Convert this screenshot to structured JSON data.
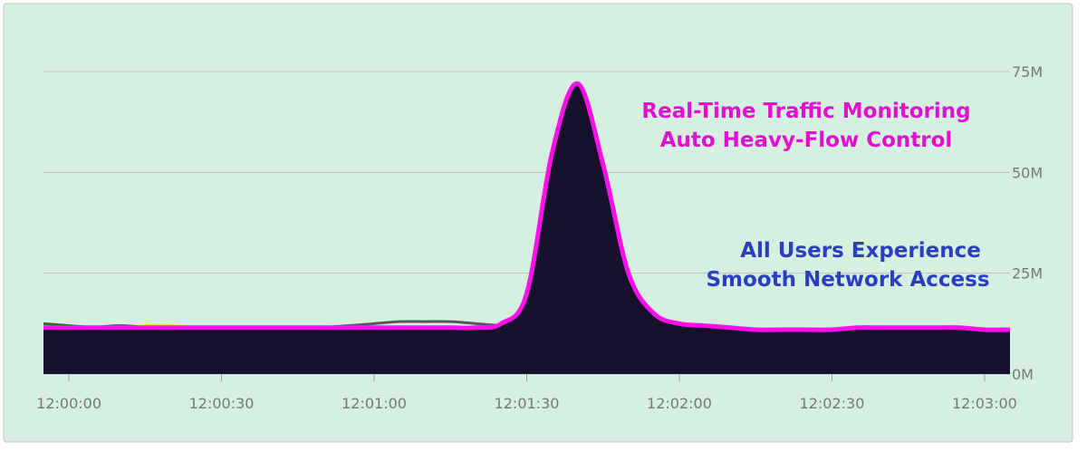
{
  "chart_data": {
    "type": "line",
    "x": [
      "11:59:55",
      "12:00:00",
      "12:00:05",
      "12:00:10",
      "12:00:15",
      "12:00:20",
      "12:00:25",
      "12:00:30",
      "12:00:35",
      "12:00:40",
      "12:00:45",
      "12:00:50",
      "12:00:55",
      "12:01:00",
      "12:01:05",
      "12:01:10",
      "12:01:15",
      "12:01:20",
      "12:01:25",
      "12:01:30",
      "12:01:35",
      "12:01:40",
      "12:01:45",
      "12:01:50",
      "12:01:55",
      "12:02:00",
      "12:02:05",
      "12:02:10",
      "12:02:15",
      "12:02:20",
      "12:02:25",
      "12:02:30",
      "12:02:35",
      "12:02:40",
      "12:02:45",
      "12:02:50",
      "12:02:55",
      "12:03:00",
      "12:03:05"
    ],
    "xticks": [
      "12:00:00",
      "12:00:30",
      "12:01:00",
      "12:01:30",
      "12:02:00",
      "12:02:30",
      "12:03:00"
    ],
    "ylim": [
      0,
      80
    ],
    "yticks": [
      {
        "value": 0,
        "label": "0M"
      },
      {
        "value": 25,
        "label": "25M"
      },
      {
        "value": 50,
        "label": "50M"
      },
      {
        "value": 75,
        "label": "75M"
      }
    ],
    "grid": true,
    "annotations": [
      "Real-Time Traffic Monitoring",
      "Auto Heavy-Flow Control",
      "All Users Experience",
      "Smooth Network Access"
    ],
    "fill_color": "#15102b",
    "series": [
      {
        "color": "#f2e33a",
        "values": [
          10,
          10,
          10.5,
          11,
          12,
          12,
          11.5,
          11,
          10.5,
          10,
          10,
          10.5,
          11,
          11,
          11.5,
          11.5,
          11.5,
          11,
          11,
          11,
          10.5,
          10,
          10,
          10,
          10,
          10,
          10,
          10.5,
          10.5,
          10.5,
          11,
          11,
          10.5,
          10.5,
          10,
          10,
          10,
          9.5,
          9.5
        ]
      },
      {
        "color": "#e8a23a",
        "values": [
          11,
          11,
          11,
          11,
          11.5,
          11.5,
          11,
          11,
          11,
          11,
          11,
          11,
          11.5,
          11.5,
          11.5,
          11,
          11,
          11,
          11,
          11.5,
          10,
          9.5,
          9.5,
          10,
          10,
          10,
          10,
          9.5,
          9.5,
          9.5,
          9.5,
          9.5,
          10,
          10,
          10,
          10,
          9.5,
          9.5,
          9.5
        ]
      },
      {
        "color": "#e02020",
        "values": [
          11,
          10.5,
          10.5,
          10.5,
          10.5,
          10,
          10,
          10,
          10,
          10,
          10,
          10,
          10,
          10,
          10,
          10,
          10.5,
          10.5,
          11,
          11,
          11,
          11,
          10.5,
          10.5,
          10.5,
          10,
          10,
          10,
          10,
          10,
          10,
          10,
          10,
          10,
          10,
          10,
          10,
          10,
          10
        ]
      },
      {
        "color": "#2a6e2a",
        "values": [
          12.5,
          12,
          11.5,
          11,
          11,
          11,
          11,
          11,
          11,
          11,
          11.5,
          11.5,
          11.5,
          11.5,
          11,
          11,
          11,
          11,
          11,
          11,
          11,
          11,
          11,
          10.5,
          10.5,
          10.5,
          10.5,
          10,
          10,
          10,
          10,
          10,
          10,
          10,
          10,
          10,
          10,
          9.5,
          9.5
        ]
      },
      {
        "color": "#585858",
        "values": [
          9.5,
          10.5,
          11.5,
          12,
          11.5,
          10.5,
          9.5,
          9,
          9,
          9.5,
          10.5,
          11.5,
          12,
          12.5,
          13,
          13,
          13,
          12.5,
          12,
          11.5,
          11,
          10.5,
          10.5,
          10.5,
          10.5,
          10,
          10,
          10,
          10,
          10,
          10,
          10,
          10,
          10,
          9.5,
          9.5,
          9.5,
          9,
          9
        ]
      },
      {
        "color": "#ff10e8",
        "values": [
          11.5,
          11.5,
          11.5,
          11.5,
          11.5,
          11.5,
          11.5,
          11.5,
          11.5,
          11.5,
          11.5,
          11.5,
          11.5,
          11.5,
          11.5,
          11.5,
          11.5,
          11.5,
          12.5,
          20,
          55,
          72,
          52,
          25,
          15,
          12.5,
          12,
          11.5,
          11,
          11,
          11,
          11,
          11.5,
          11.5,
          11.5,
          11.5,
          11.5,
          11,
          11
        ]
      }
    ]
  }
}
